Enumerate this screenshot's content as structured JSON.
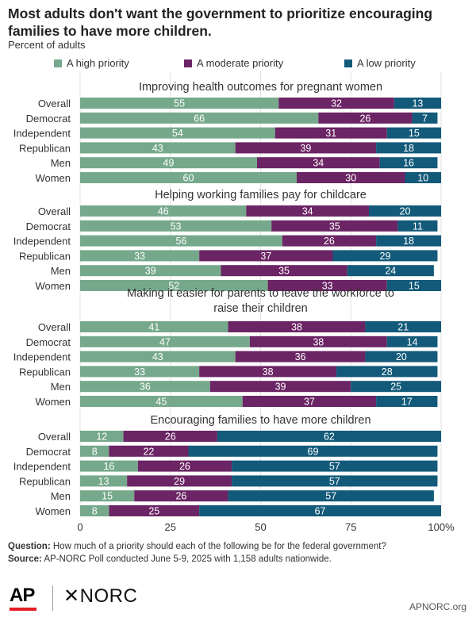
{
  "title": "Most adults don't want the government to prioritize encouraging families to have more children.",
  "subtitle": "Percent of adults",
  "legend": [
    {
      "label": "A high priority",
      "color": "#76a98b"
    },
    {
      "label": "A moderate priority",
      "color": "#6b2464"
    },
    {
      "label": "A low priority",
      "color": "#135a7a"
    }
  ],
  "chart_data": {
    "type": "bar",
    "orientation": "horizontal",
    "stacked": true,
    "xlim": [
      0,
      100
    ],
    "xticks": [
      "0",
      "25",
      "50",
      "75",
      "100%"
    ],
    "series_names": [
      "A high priority",
      "A moderate priority",
      "A low priority"
    ],
    "colors": [
      "#76a98b",
      "#6b2464",
      "#135a7a"
    ],
    "panels": [
      {
        "title": "Improving health outcomes for pregnant women",
        "categories": [
          "Overall",
          "Democrat",
          "Independent",
          "Republican",
          "Men",
          "Women"
        ],
        "values": [
          [
            55,
            32,
            13
          ],
          [
            66,
            26,
            7
          ],
          [
            54,
            31,
            15
          ],
          [
            43,
            39,
            18
          ],
          [
            49,
            34,
            16
          ],
          [
            60,
            30,
            10
          ]
        ]
      },
      {
        "title": "Helping working families pay for childcare",
        "categories": [
          "Overall",
          "Democrat",
          "Independent",
          "Republican",
          "Men",
          "Women"
        ],
        "values": [
          [
            46,
            34,
            20
          ],
          [
            53,
            35,
            11
          ],
          [
            56,
            26,
            18
          ],
          [
            33,
            37,
            29
          ],
          [
            39,
            35,
            24
          ],
          [
            52,
            33,
            15
          ]
        ]
      },
      {
        "title": "Making it easier for parents to leave the workforce to raise their children",
        "categories": [
          "Overall",
          "Democrat",
          "Independent",
          "Republican",
          "Men",
          "Women"
        ],
        "values": [
          [
            41,
            38,
            21
          ],
          [
            47,
            38,
            14
          ],
          [
            43,
            36,
            20
          ],
          [
            33,
            38,
            28
          ],
          [
            36,
            39,
            25
          ],
          [
            45,
            37,
            17
          ]
        ]
      },
      {
        "title": "Encouraging families to have more children",
        "categories": [
          "Overall",
          "Democrat",
          "Independent",
          "Republican",
          "Men",
          "Women"
        ],
        "values": [
          [
            12,
            26,
            62
          ],
          [
            8,
            22,
            69
          ],
          [
            16,
            26,
            57
          ],
          [
            13,
            29,
            57
          ],
          [
            15,
            26,
            57
          ],
          [
            8,
            25,
            67
          ]
        ]
      }
    ]
  },
  "footer": {
    "question_label": "Question:",
    "question_text": "How much of a priority should each of the following be for the federal government?",
    "source_label": "Source:",
    "source_text": "AP-NORC Poll conducted June 5-9, 2025 with 1,158 adults nationwide."
  },
  "logos": {
    "ap": "AP",
    "norc": "NORC"
  },
  "site": "APNORC.org"
}
